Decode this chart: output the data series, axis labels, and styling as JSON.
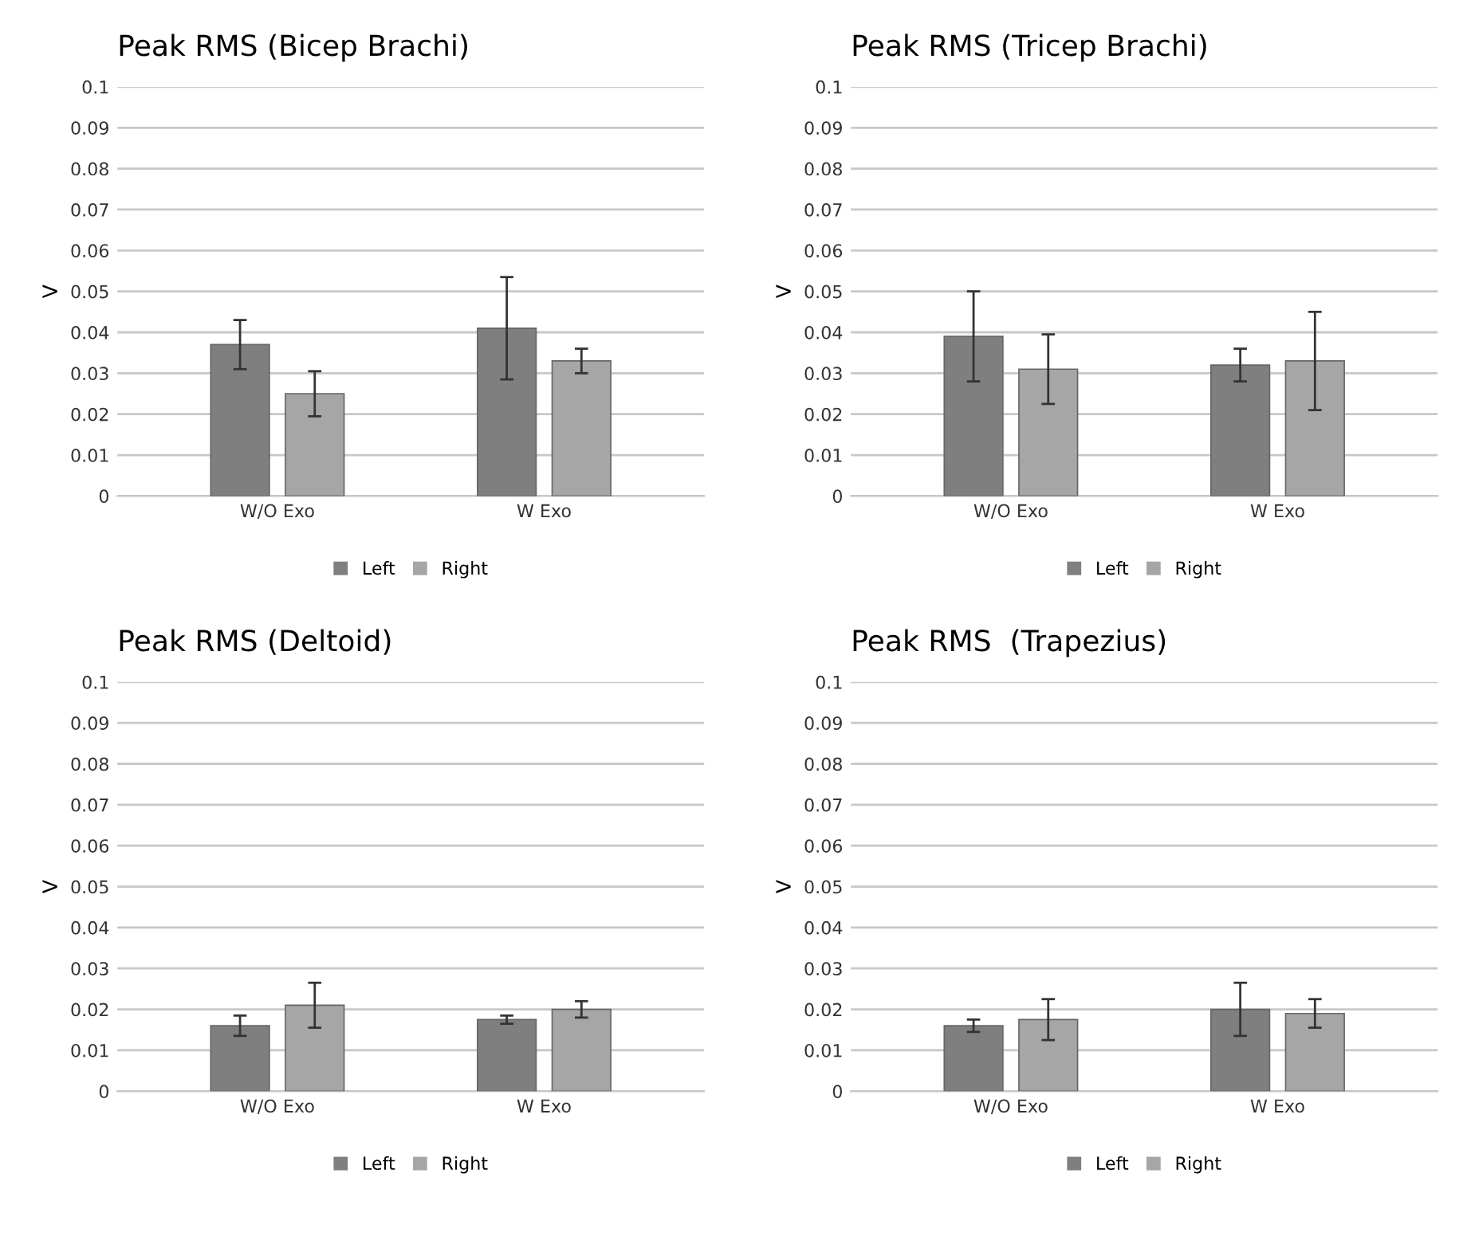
{
  "chart_data": [
    {
      "type": "bar",
      "title": "Peak RMS (Bicep Brachi)",
      "ylabel": "V",
      "categories": [
        "W/O Exo",
        "W Exo"
      ],
      "ylim": [
        0,
        0.1
      ],
      "yticks": [
        0,
        0.01,
        0.02,
        0.03,
        0.04,
        0.05,
        0.06,
        0.07,
        0.08,
        0.09,
        0.1
      ],
      "grid": "y",
      "legend": "bottom",
      "series": [
        {
          "name": "Left",
          "color": "#7f7f7f",
          "values": [
            0.037,
            0.041
          ],
          "errors": [
            0.006,
            0.0125
          ]
        },
        {
          "name": "Right",
          "color": "#a6a6a6",
          "values": [
            0.025,
            0.033
          ],
          "errors": [
            0.0055,
            0.003
          ]
        }
      ]
    },
    {
      "type": "bar",
      "title": "Peak RMS (Tricep Brachi)",
      "ylabel": "V",
      "categories": [
        "W/O Exo",
        "W Exo"
      ],
      "ylim": [
        0,
        0.1
      ],
      "yticks": [
        0,
        0.01,
        0.02,
        0.03,
        0.04,
        0.05,
        0.06,
        0.07,
        0.08,
        0.09,
        0.1
      ],
      "grid": "y",
      "legend": "bottom",
      "series": [
        {
          "name": "Left",
          "color": "#7f7f7f",
          "values": [
            0.039,
            0.032
          ],
          "errors": [
            0.011,
            0.004
          ]
        },
        {
          "name": "Right",
          "color": "#a6a6a6",
          "values": [
            0.031,
            0.033
          ],
          "errors": [
            0.0085,
            0.012
          ]
        }
      ]
    },
    {
      "type": "bar",
      "title": "Peak RMS (Deltoid)",
      "ylabel": "V",
      "categories": [
        "W/O Exo",
        "W Exo"
      ],
      "ylim": [
        0,
        0.1
      ],
      "yticks": [
        0,
        0.01,
        0.02,
        0.03,
        0.04,
        0.05,
        0.06,
        0.07,
        0.08,
        0.09,
        0.1
      ],
      "grid": "y",
      "legend": "bottom",
      "series": [
        {
          "name": "Left",
          "color": "#7f7f7f",
          "values": [
            0.016,
            0.0175
          ],
          "errors": [
            0.0025,
            0.001
          ]
        },
        {
          "name": "Right",
          "color": "#a6a6a6",
          "values": [
            0.021,
            0.02
          ],
          "errors": [
            0.0055,
            0.002
          ]
        }
      ]
    },
    {
      "type": "bar",
      "title": "Peak RMS  (Trapezius)",
      "ylabel": "V",
      "categories": [
        "W/O Exo",
        "W Exo"
      ],
      "ylim": [
        0,
        0.1
      ],
      "yticks": [
        0,
        0.01,
        0.02,
        0.03,
        0.04,
        0.05,
        0.06,
        0.07,
        0.08,
        0.09,
        0.1
      ],
      "grid": "y",
      "legend": "bottom",
      "series": [
        {
          "name": "Left",
          "color": "#7f7f7f",
          "values": [
            0.016,
            0.02
          ],
          "errors": [
            0.0015,
            0.0065
          ]
        },
        {
          "name": "Right",
          "color": "#a6a6a6",
          "values": [
            0.0175,
            0.019
          ],
          "errors": [
            0.005,
            0.0035
          ]
        }
      ]
    }
  ]
}
